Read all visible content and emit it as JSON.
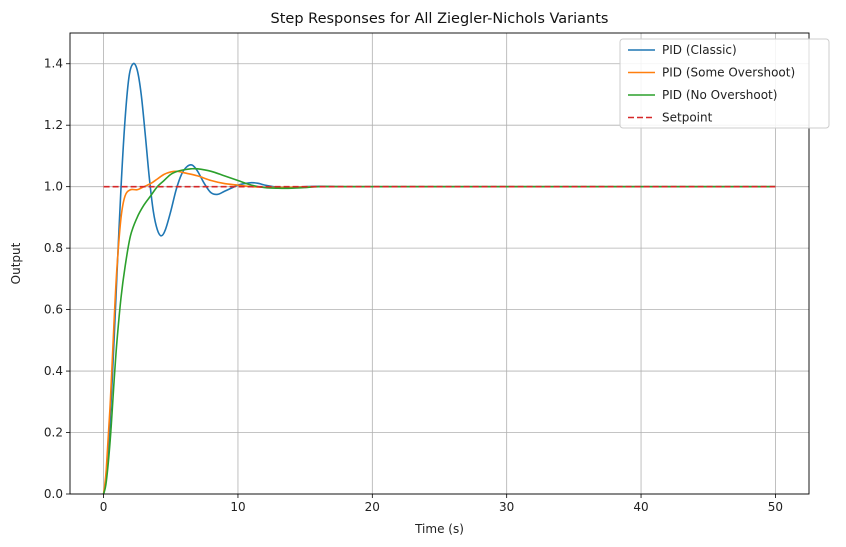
{
  "chart_data": {
    "type": "line",
    "title": "Step Responses for All Ziegler-Nichols Variants",
    "xlabel": "Time (s)",
    "ylabel": "Output",
    "xlim": [
      -2.5,
      52.5
    ],
    "ylim": [
      0,
      1.5
    ],
    "xticks": [
      0,
      10,
      20,
      30,
      40,
      50
    ],
    "yticks": [
      0.0,
      0.2,
      0.4,
      0.6,
      0.8,
      1.0,
      1.2,
      1.4
    ],
    "ytick_labels": [
      "0.0",
      "0.2",
      "0.4",
      "0.6",
      "0.8",
      "1.0",
      "1.2",
      "1.4"
    ],
    "grid": true,
    "legend_position": "top-right",
    "series": [
      {
        "name": "PID (Classic)",
        "color": "#1f77b4",
        "style": "solid",
        "x": [
          0,
          0.2,
          0.5,
          0.8,
          1.0,
          1.3,
          1.6,
          1.9,
          2.2,
          2.5,
          2.8,
          3.1,
          3.4,
          3.7,
          4.0,
          4.3,
          4.6,
          5.0,
          5.4,
          5.8,
          6.2,
          6.6,
          7.0,
          7.5,
          8.0,
          8.5,
          9.0,
          9.5,
          10.0,
          10.5,
          11.0,
          11.5,
          12.0,
          13.0,
          14.0,
          15.0,
          16.0,
          18.0,
          20.0,
          25.0,
          30.0,
          40.0,
          50.0
        ],
        "y": [
          0.0,
          0.06,
          0.25,
          0.52,
          0.72,
          1.0,
          1.22,
          1.36,
          1.4,
          1.38,
          1.3,
          1.17,
          1.03,
          0.92,
          0.86,
          0.84,
          0.86,
          0.92,
          0.99,
          1.04,
          1.065,
          1.07,
          1.05,
          1.01,
          0.98,
          0.975,
          0.985,
          0.995,
          1.005,
          1.01,
          1.013,
          1.011,
          1.005,
          0.998,
          0.998,
          1.0,
          1.001,
          1.0,
          1.0,
          1.0,
          1.0,
          1.0,
          1.0
        ]
      },
      {
        "name": "PID (Some Overshoot)",
        "color": "#ff7f0e",
        "style": "solid",
        "x": [
          0,
          0.2,
          0.5,
          0.8,
          1.0,
          1.3,
          1.6,
          2.0,
          2.5,
          3.0,
          3.5,
          4.0,
          4.5,
          5.0,
          5.5,
          6.0,
          7.0,
          8.0,
          9.0,
          10.0,
          11.0,
          12.0,
          14.0,
          16.0,
          20.0,
          30.0,
          40.0,
          50.0
        ],
        "y": [
          0.0,
          0.08,
          0.3,
          0.58,
          0.74,
          0.9,
          0.97,
          0.99,
          0.99,
          1.0,
          1.01,
          1.025,
          1.04,
          1.048,
          1.05,
          1.045,
          1.035,
          1.02,
          1.01,
          1.005,
          1.0,
          0.998,
          0.998,
          1.0,
          1.0,
          1.0,
          1.0,
          1.0
        ]
      },
      {
        "name": "PID (No Overshoot)",
        "color": "#2ca02c",
        "style": "solid",
        "x": [
          0,
          0.2,
          0.5,
          0.8,
          1.0,
          1.3,
          1.6,
          2.0,
          2.5,
          3.0,
          3.5,
          4.0,
          4.5,
          5.0,
          5.5,
          6.0,
          6.5,
          7.0,
          8.0,
          9.0,
          10.0,
          11.0,
          12.0,
          13.0,
          14.0,
          15.0,
          16.0,
          18.0,
          20.0,
          30.0,
          40.0,
          50.0
        ],
        "y": [
          0.0,
          0.04,
          0.18,
          0.38,
          0.5,
          0.64,
          0.74,
          0.84,
          0.9,
          0.94,
          0.97,
          1.0,
          1.02,
          1.04,
          1.05,
          1.055,
          1.058,
          1.058,
          1.05,
          1.035,
          1.02,
          1.005,
          0.997,
          0.995,
          0.995,
          0.997,
          1.0,
          1.0,
          1.0,
          1.0,
          1.0,
          1.0
        ]
      },
      {
        "name": "Setpoint",
        "color": "#d62728",
        "style": "dashed",
        "x": [
          0,
          50
        ],
        "y": [
          1.0,
          1.0
        ]
      }
    ]
  }
}
